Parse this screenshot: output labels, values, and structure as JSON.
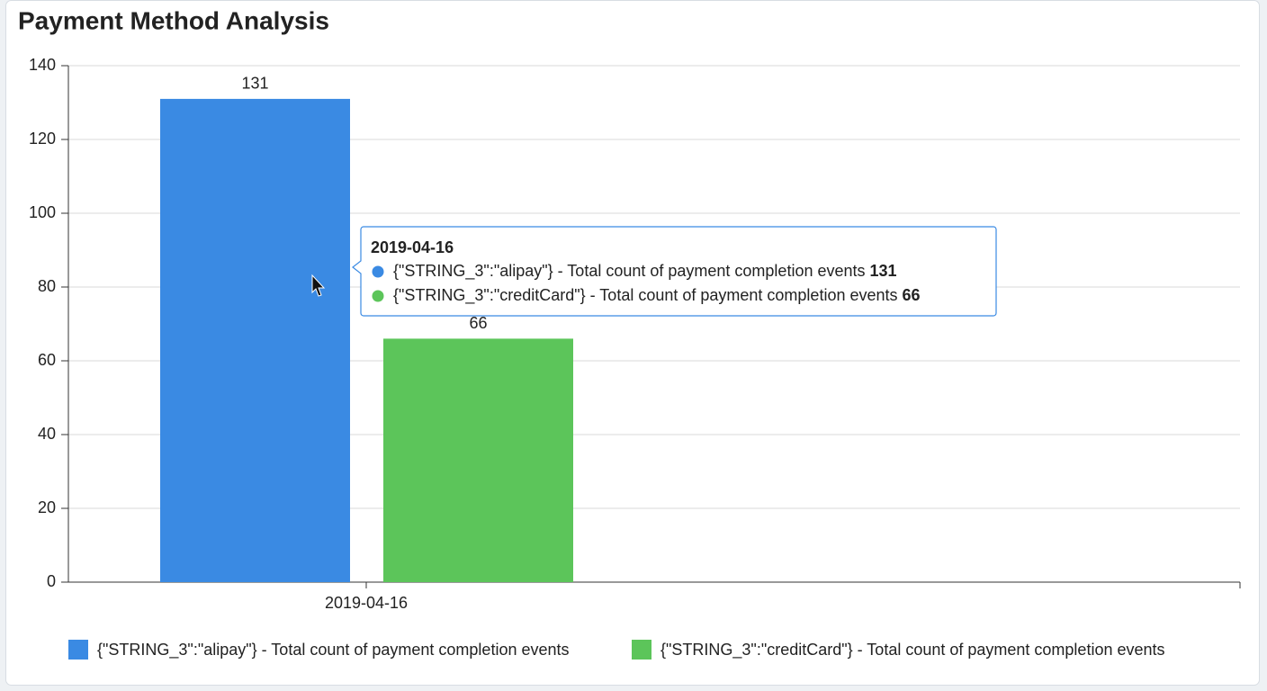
{
  "chart_data": {
    "type": "bar",
    "title": "Payment Method Analysis",
    "categories": [
      "2019-04-16"
    ],
    "series": [
      {
        "name": "{\"STRING_3\":\"alipay\"} - Total count of payment completion events",
        "color": "#3a8ae3",
        "values": [
          131
        ]
      },
      {
        "name": "{\"STRING_3\":\"creditCard\"} - Total count of payment completion events",
        "color": "#5cc55a",
        "values": [
          66
        ]
      }
    ],
    "ylim": [
      0,
      140
    ],
    "yticks": [
      0,
      20,
      40,
      60,
      80,
      100,
      120,
      140
    ],
    "grid": true,
    "legend": "bottom",
    "tooltip": {
      "title": "2019-04-16"
    }
  }
}
